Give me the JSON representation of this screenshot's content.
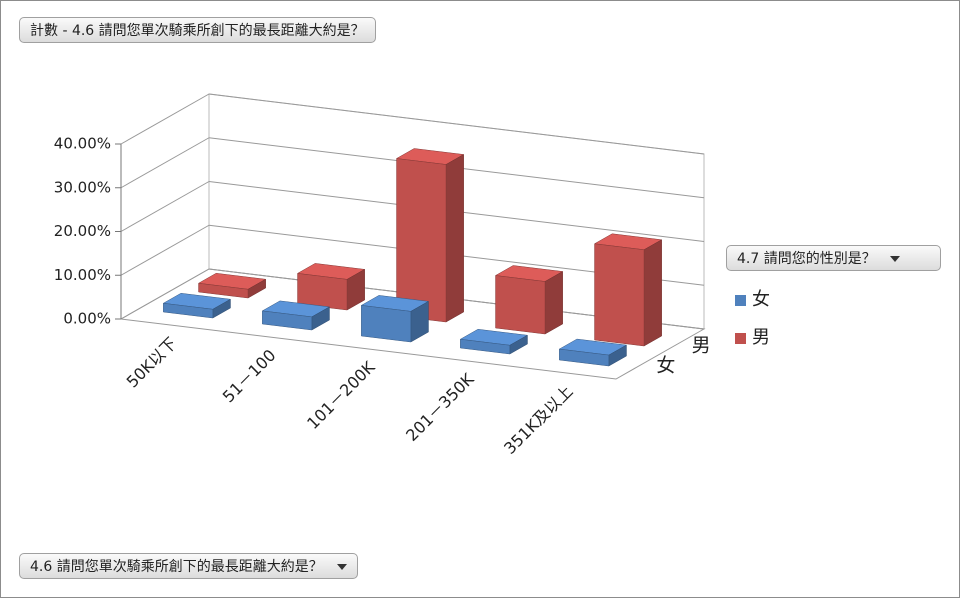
{
  "chart_data": {
    "type": "bar3d",
    "title": "計數 - 4.6 請問您單次騎乘所創下的最長距離大約是？",
    "legend_title": "4.7 請問您的性別是？",
    "x_label": "4.6 請問您單次騎乘所創下的最長距離大約是？",
    "categories": [
      "50K以下",
      "51－100",
      "101－200K",
      "201－350K",
      "351K及以上"
    ],
    "series": [
      {
        "name": "女",
        "color": "#4f81bd",
        "values": [
          2,
          3,
          7,
          2,
          2.5
        ]
      },
      {
        "name": "男",
        "color": "#c0504d",
        "values": [
          2,
          7,
          36,
          12,
          22
        ]
      }
    ],
    "ylim": [
      0,
      40
    ],
    "yticks": [
      {
        "value": 0,
        "label": "0.00%"
      },
      {
        "value": 10,
        "label": "10.00%"
      },
      {
        "value": 20,
        "label": "20.00%"
      },
      {
        "value": 30,
        "label": "30.00%"
      },
      {
        "value": 40,
        "label": "40.00%"
      }
    ],
    "grid": true
  }
}
